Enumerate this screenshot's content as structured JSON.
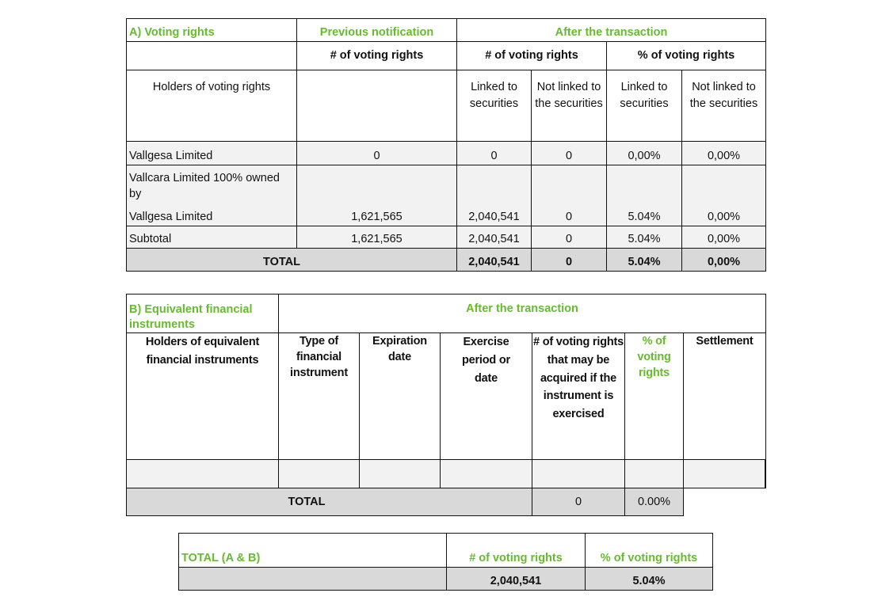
{
  "table_a": {
    "title": "A) Voting rights",
    "previous_notification": "Previous notification",
    "after_transaction": "After the transaction",
    "num_voting_rights": "# of voting rights",
    "pct_voting_rights": "% of voting rights",
    "holders_label": "Holders of voting rights",
    "linked": "Linked to securities",
    "not_linked_a": "Not linked to the securities",
    "not_linked_b": "Not linked to the securities",
    "rows": [
      {
        "name": "Vallgesa Limited",
        "previous": "0",
        "linked": "0",
        "not_linked": "0",
        "pct_linked": "0,00%",
        "pct_not_linked": "0,00%"
      },
      {
        "name_line1": "Vallcara Limited 100% owned by",
        "name_line2": "Vallgesa Limited",
        "previous": "1,621,565",
        "linked": "2,040,541",
        "not_linked": "0",
        "pct_linked": "5.04%",
        "pct_not_linked": "0,00%"
      },
      {
        "name": "Subtotal",
        "previous": "1,621,565",
        "linked": "2,040,541",
        "not_linked": "0",
        "pct_linked": "5.04%",
        "pct_not_linked": "0,00%"
      }
    ],
    "total": {
      "label": "TOTAL",
      "linked": "2,040,541",
      "not_linked": "0",
      "pct_linked": "5.04%",
      "pct_not_linked": "0,00%"
    }
  },
  "table_b": {
    "title": "B) Equivalent financial instruments",
    "after_transaction": "After the transaction",
    "columns": [
      "Holders of equivalent financial instruments",
      "Type of financial instrument",
      "Expiration date",
      "Exercise period or date",
      "# of voting rights that may be acquired if the instrument is exercised",
      "% of voting rights",
      "Settlement"
    ],
    "total": {
      "label": "TOTAL",
      "voting_rights": "0",
      "pct": "0.00%"
    }
  },
  "table_c": {
    "title": "TOTAL (A & B)",
    "num_voting_rights": "# of voting rights",
    "pct_voting_rights": "% of voting rights",
    "num_value": "2,040,541",
    "pct_value": "5.04%"
  }
}
